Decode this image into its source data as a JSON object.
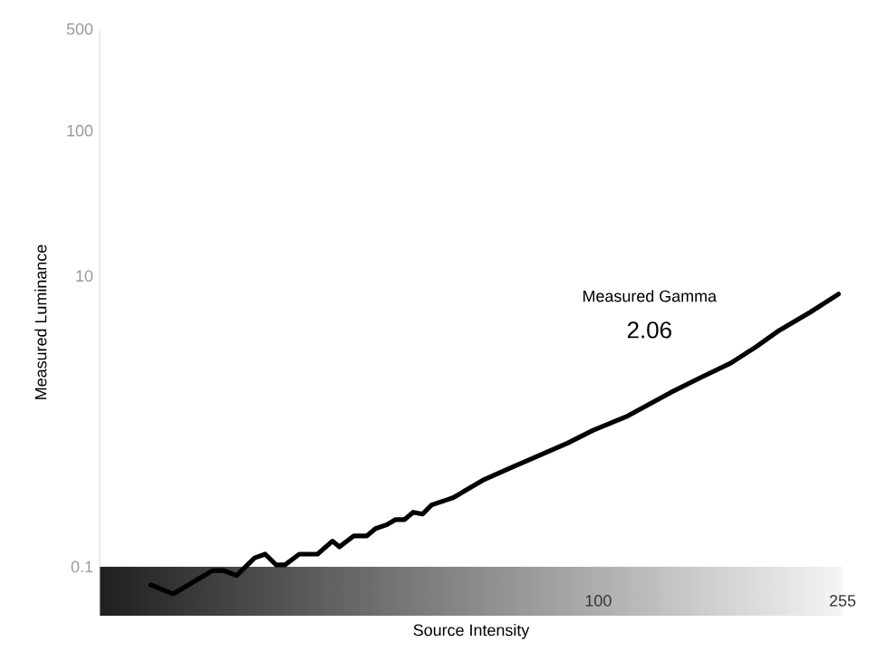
{
  "chart_data": {
    "type": "line",
    "xlabel": "Source Intensity",
    "ylabel": "Measured Luminance",
    "annotations": [
      "Measured Gamma",
      "2.06"
    ],
    "bands": [
      {
        "axis": "y",
        "from": 0.046,
        "to": 0.1
      }
    ],
    "log": "xy",
    "grid": false,
    "marker": "none",
    "line_style": "solid",
    "xlim": [
      14.8,
      255
    ],
    "xticks": [
      100,
      255
    ],
    "ylim": [
      0.046,
      500
    ],
    "yticks": [
      0.1,
      10,
      100,
      500
    ],
    "series": [
      {
        "color": "#000000",
        "x": [
          18.0,
          19.6,
          22.8,
          23.8,
          25.0,
          26.8,
          27.9,
          29.1,
          30.1,
          31.8,
          34.1,
          36.1,
          37.1,
          39.2,
          41.2,
          42.6,
          44.4,
          46.0,
          47.6,
          49.2,
          51.0,
          52.8,
          56.2,
          57.4,
          64.6,
          72.2,
          79.5,
          88.9,
          97.9,
          112,
          132,
          148,
          166,
          183,
          200,
          225,
          251
        ],
        "values": [
          0.075,
          0.065,
          0.094,
          0.094,
          0.087,
          0.115,
          0.122,
          0.103,
          0.103,
          0.122,
          0.122,
          0.15,
          0.137,
          0.163,
          0.163,
          0.183,
          0.194,
          0.211,
          0.211,
          0.237,
          0.23,
          0.266,
          0.29,
          0.299,
          0.398,
          0.487,
          0.579,
          0.708,
          0.866,
          1.09,
          1.58,
          2.0,
          2.51,
          3.25,
          4.22,
          5.62,
          7.5
        ]
      }
    ]
  }
}
